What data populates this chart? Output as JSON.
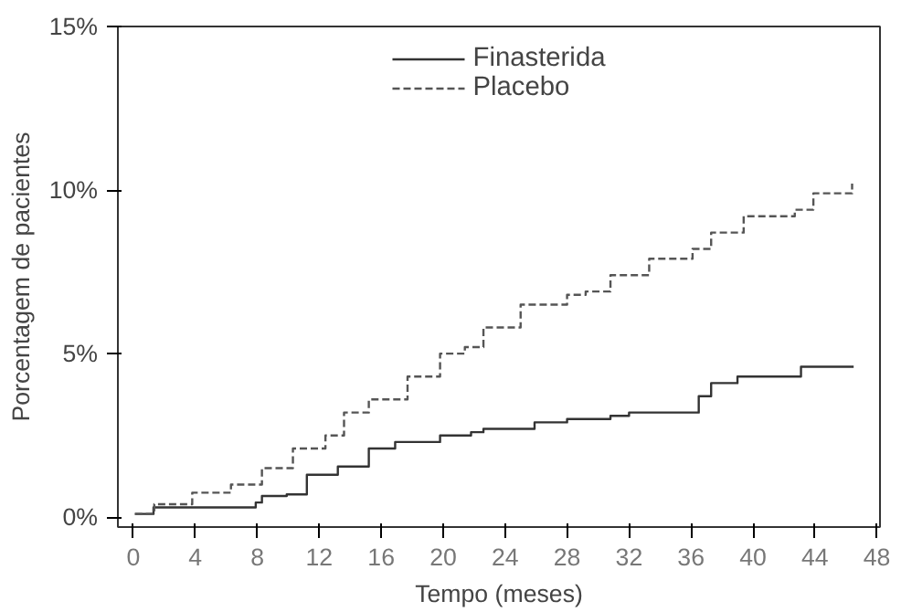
{
  "chart_data": {
    "type": "step",
    "xlabel": "Tempo (meses)",
    "ylabel": "Porcentagem de pacientes",
    "xlim": [
      -1,
      48.2
    ],
    "ylim": [
      -0.3,
      15
    ],
    "xticks": [
      0,
      4,
      8,
      12,
      16,
      20,
      24,
      28,
      32,
      36,
      40,
      44,
      48
    ],
    "yticks": [
      {
        "value": 0,
        "label": "0%"
      },
      {
        "value": 5,
        "label": "5%"
      },
      {
        "value": 10,
        "label": "10%"
      },
      {
        "value": 15,
        "label": "15%"
      }
    ],
    "legend": "top",
    "grid": false,
    "series": [
      {
        "name": "Finasterida",
        "color": "#333333",
        "line_style": "solid",
        "x": [
          0.1,
          1.3,
          7.9,
          8.3,
          9.9,
          11.2,
          13.2,
          15.2,
          16.9,
          19.8,
          21.8,
          22.6,
          24.7,
          25.9,
          28,
          30.8,
          32.0,
          34.7,
          36.5,
          37.3,
          39.0,
          42.0,
          43.1,
          46.5
        ],
        "values": [
          0.1,
          0.3,
          0.45,
          0.65,
          0.7,
          1.3,
          1.55,
          2.1,
          2.3,
          2.5,
          2.6,
          2.7,
          2.7,
          2.9,
          3.0,
          3.1,
          3.2,
          3.2,
          3.7,
          4.1,
          4.3,
          4.3,
          4.6,
          4.6
        ]
      },
      {
        "name": "Placebo",
        "color": "#555555",
        "line_style": "dashed",
        "x": [
          0.1,
          1.35,
          3.8,
          6.3,
          8.3,
          10.3,
          12.4,
          13.6,
          15.2,
          17.7,
          19.8,
          21.4,
          22.6,
          25,
          28,
          29.2,
          30.8,
          33.3,
          36.1,
          37.3,
          39.4,
          42.7,
          43.9,
          46.1,
          46.4
        ],
        "values": [
          0.1,
          0.4,
          0.75,
          1.0,
          1.5,
          2.1,
          2.5,
          3.2,
          3.6,
          4.3,
          5.0,
          5.2,
          5.8,
          6.5,
          6.8,
          6.9,
          7.4,
          7.9,
          8.2,
          8.7,
          9.2,
          9.4,
          9.9,
          9.9,
          10.2
        ]
      }
    ]
  }
}
